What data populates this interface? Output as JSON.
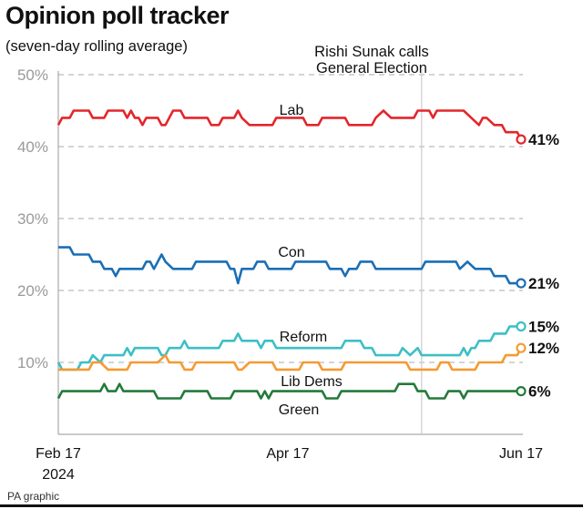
{
  "header": {
    "title": "Opinion poll tracker",
    "subtitle": "(seven-day rolling average)"
  },
  "footer": {
    "credit": "PA graphic"
  },
  "chart_data": {
    "type": "line",
    "title": "Opinion poll tracker",
    "subtitle": "(seven-day rolling average)",
    "xlabel": "",
    "ylabel": "",
    "xlim": [
      "2024-02-17",
      "2024-06-17"
    ],
    "ylim": [
      0,
      50
    ],
    "x_ticks": [
      {
        "date": "2024-02-17",
        "label": "Feb 17",
        "sublabel": "2024"
      },
      {
        "date": "2024-04-17",
        "label": "Apr 17",
        "sublabel": ""
      },
      {
        "date": "2024-06-17",
        "label": "Jun 17",
        "sublabel": ""
      }
    ],
    "y_ticks": [
      {
        "value": 10,
        "label": "10%"
      },
      {
        "value": 20,
        "label": "20%"
      },
      {
        "value": 30,
        "label": "30%"
      },
      {
        "value": 40,
        "label": "40%"
      },
      {
        "value": 50,
        "label": "50%"
      }
    ],
    "grid": "horizontal dashed",
    "annotation": {
      "date": "2024-05-22",
      "text_line1": "Rishi Sunak calls",
      "text_line2": "General Election"
    },
    "series": [
      {
        "name": "Lab",
        "color": "#e3262b",
        "end_label": "41%",
        "points": [
          [
            "2024-02-17",
            43
          ],
          [
            "2024-02-18",
            44
          ],
          [
            "2024-02-20",
            44
          ],
          [
            "2024-02-21",
            45
          ],
          [
            "2024-02-25",
            45
          ],
          [
            "2024-02-26",
            44
          ],
          [
            "2024-02-29",
            44
          ],
          [
            "2024-03-01",
            45
          ],
          [
            "2024-03-05",
            45
          ],
          [
            "2024-03-06",
            44
          ],
          [
            "2024-03-07",
            45
          ],
          [
            "2024-03-08",
            44
          ],
          [
            "2024-03-09",
            44
          ],
          [
            "2024-03-10",
            43
          ],
          [
            "2024-03-11",
            44
          ],
          [
            "2024-03-14",
            44
          ],
          [
            "2024-03-15",
            43
          ],
          [
            "2024-03-16",
            43
          ],
          [
            "2024-03-18",
            45
          ],
          [
            "2024-03-20",
            45
          ],
          [
            "2024-03-21",
            44
          ],
          [
            "2024-03-27",
            44
          ],
          [
            "2024-03-28",
            43
          ],
          [
            "2024-03-30",
            43
          ],
          [
            "2024-03-31",
            44
          ],
          [
            "2024-04-03",
            44
          ],
          [
            "2024-04-04",
            45
          ],
          [
            "2024-04-05",
            44
          ],
          [
            "2024-04-07",
            43
          ],
          [
            "2024-04-13",
            43
          ],
          [
            "2024-04-14",
            44
          ],
          [
            "2024-04-21",
            44
          ],
          [
            "2024-04-22",
            43
          ],
          [
            "2024-04-25",
            43
          ],
          [
            "2024-04-26",
            44
          ],
          [
            "2024-05-02",
            44
          ],
          [
            "2024-05-03",
            43
          ],
          [
            "2024-05-09",
            43
          ],
          [
            "2024-05-10",
            44
          ],
          [
            "2024-05-12",
            45
          ],
          [
            "2024-05-14",
            44
          ],
          [
            "2024-05-20",
            44
          ],
          [
            "2024-05-21",
            45
          ],
          [
            "2024-05-24",
            45
          ],
          [
            "2024-05-25",
            44
          ],
          [
            "2024-05-26",
            45
          ],
          [
            "2024-06-02",
            45
          ],
          [
            "2024-06-04",
            44
          ],
          [
            "2024-06-06",
            43
          ],
          [
            "2024-06-07",
            44
          ],
          [
            "2024-06-08",
            44
          ],
          [
            "2024-06-10",
            43
          ],
          [
            "2024-06-12",
            43
          ],
          [
            "2024-06-13",
            42
          ],
          [
            "2024-06-16",
            42
          ],
          [
            "2024-06-17",
            41
          ]
        ]
      },
      {
        "name": "Con",
        "color": "#1a6fb5",
        "end_label": "21%",
        "points": [
          [
            "2024-02-17",
            26
          ],
          [
            "2024-02-20",
            26
          ],
          [
            "2024-02-21",
            25
          ],
          [
            "2024-02-25",
            25
          ],
          [
            "2024-02-26",
            24
          ],
          [
            "2024-02-28",
            24
          ],
          [
            "2024-02-29",
            23
          ],
          [
            "2024-03-02",
            23
          ],
          [
            "2024-03-03",
            22
          ],
          [
            "2024-03-04",
            23
          ],
          [
            "2024-03-10",
            23
          ],
          [
            "2024-03-11",
            24
          ],
          [
            "2024-03-12",
            24
          ],
          [
            "2024-03-13",
            23
          ],
          [
            "2024-03-15",
            25
          ],
          [
            "2024-03-16",
            24
          ],
          [
            "2024-03-18",
            23
          ],
          [
            "2024-03-23",
            23
          ],
          [
            "2024-03-24",
            24
          ],
          [
            "2024-04-01",
            24
          ],
          [
            "2024-04-02",
            23
          ],
          [
            "2024-04-03",
            23
          ],
          [
            "2024-04-04",
            21
          ],
          [
            "2024-04-05",
            23
          ],
          [
            "2024-04-08",
            23
          ],
          [
            "2024-04-09",
            24
          ],
          [
            "2024-04-11",
            24
          ],
          [
            "2024-04-12",
            23
          ],
          [
            "2024-04-18",
            23
          ],
          [
            "2024-04-19",
            24
          ],
          [
            "2024-04-27",
            24
          ],
          [
            "2024-04-28",
            23
          ],
          [
            "2024-05-01",
            23
          ],
          [
            "2024-05-02",
            22
          ],
          [
            "2024-05-03",
            23
          ],
          [
            "2024-05-05",
            23
          ],
          [
            "2024-05-06",
            24
          ],
          [
            "2024-05-09",
            24
          ],
          [
            "2024-05-10",
            23
          ],
          [
            "2024-05-22",
            23
          ],
          [
            "2024-05-23",
            24
          ],
          [
            "2024-05-31",
            24
          ],
          [
            "2024-06-01",
            23
          ],
          [
            "2024-06-03",
            24
          ],
          [
            "2024-06-05",
            23
          ],
          [
            "2024-06-09",
            23
          ],
          [
            "2024-06-10",
            22
          ],
          [
            "2024-06-13",
            22
          ],
          [
            "2024-06-14",
            21
          ],
          [
            "2024-06-17",
            21
          ]
        ]
      },
      {
        "name": "Reform",
        "color": "#3cbfc6",
        "end_label": "15%",
        "points": [
          [
            "2024-02-17",
            10
          ],
          [
            "2024-02-18",
            9
          ],
          [
            "2024-02-22",
            9
          ],
          [
            "2024-02-23",
            10
          ],
          [
            "2024-02-25",
            10
          ],
          [
            "2024-02-26",
            11
          ],
          [
            "2024-02-28",
            10
          ],
          [
            "2024-02-29",
            11
          ],
          [
            "2024-03-05",
            11
          ],
          [
            "2024-03-06",
            12
          ],
          [
            "2024-03-07",
            11
          ],
          [
            "2024-03-08",
            12
          ],
          [
            "2024-03-14",
            12
          ],
          [
            "2024-03-15",
            11
          ],
          [
            "2024-03-16",
            11
          ],
          [
            "2024-03-17",
            12
          ],
          [
            "2024-03-20",
            12
          ],
          [
            "2024-03-21",
            13
          ],
          [
            "2024-03-22",
            12
          ],
          [
            "2024-03-30",
            12
          ],
          [
            "2024-03-31",
            13
          ],
          [
            "2024-04-03",
            13
          ],
          [
            "2024-04-04",
            14
          ],
          [
            "2024-04-05",
            13
          ],
          [
            "2024-04-09",
            13
          ],
          [
            "2024-04-10",
            12
          ],
          [
            "2024-04-11",
            13
          ],
          [
            "2024-04-13",
            13
          ],
          [
            "2024-04-14",
            12
          ],
          [
            "2024-05-01",
            12
          ],
          [
            "2024-05-02",
            13
          ],
          [
            "2024-05-06",
            13
          ],
          [
            "2024-05-07",
            12
          ],
          [
            "2024-05-09",
            12
          ],
          [
            "2024-05-10",
            11
          ],
          [
            "2024-05-16",
            11
          ],
          [
            "2024-05-17",
            12
          ],
          [
            "2024-05-19",
            11
          ],
          [
            "2024-05-21",
            12
          ],
          [
            "2024-05-22",
            11
          ],
          [
            "2024-06-01",
            11
          ],
          [
            "2024-06-02",
            12
          ],
          [
            "2024-06-03",
            11
          ],
          [
            "2024-06-04",
            12
          ],
          [
            "2024-06-05",
            12
          ],
          [
            "2024-06-06",
            13
          ],
          [
            "2024-06-09",
            13
          ],
          [
            "2024-06-10",
            14
          ],
          [
            "2024-06-13",
            14
          ],
          [
            "2024-06-14",
            15
          ],
          [
            "2024-06-17",
            15
          ]
        ]
      },
      {
        "name": "Lib Dems",
        "color": "#f59a33",
        "end_label": "12%",
        "points": [
          [
            "2024-02-17",
            9
          ],
          [
            "2024-02-25",
            9
          ],
          [
            "2024-02-26",
            10
          ],
          [
            "2024-02-28",
            10
          ],
          [
            "2024-03-01",
            9
          ],
          [
            "2024-03-06",
            9
          ],
          [
            "2024-03-07",
            10
          ],
          [
            "2024-03-14",
            10
          ],
          [
            "2024-03-16",
            11
          ],
          [
            "2024-03-17",
            10
          ],
          [
            "2024-03-20",
            10
          ],
          [
            "2024-03-21",
            9
          ],
          [
            "2024-03-23",
            9
          ],
          [
            "2024-03-24",
            10
          ],
          [
            "2024-04-03",
            10
          ],
          [
            "2024-04-04",
            9
          ],
          [
            "2024-04-05",
            9
          ],
          [
            "2024-04-07",
            10
          ],
          [
            "2024-04-13",
            10
          ],
          [
            "2024-04-14",
            9
          ],
          [
            "2024-04-20",
            9
          ],
          [
            "2024-04-21",
            10
          ],
          [
            "2024-04-25",
            10
          ],
          [
            "2024-04-26",
            9
          ],
          [
            "2024-05-01",
            9
          ],
          [
            "2024-05-02",
            10
          ],
          [
            "2024-05-18",
            10
          ],
          [
            "2024-05-19",
            9
          ],
          [
            "2024-05-26",
            9
          ],
          [
            "2024-05-27",
            10
          ],
          [
            "2024-05-29",
            10
          ],
          [
            "2024-05-30",
            9
          ],
          [
            "2024-06-05",
            9
          ],
          [
            "2024-06-06",
            10
          ],
          [
            "2024-06-12",
            10
          ],
          [
            "2024-06-13",
            11
          ],
          [
            "2024-06-16",
            11
          ],
          [
            "2024-06-17",
            12
          ]
        ]
      },
      {
        "name": "Green",
        "color": "#237a3a",
        "end_label": "6%",
        "points": [
          [
            "2024-02-17",
            5
          ],
          [
            "2024-02-18",
            6
          ],
          [
            "2024-02-28",
            6
          ],
          [
            "2024-02-29",
            7
          ],
          [
            "2024-03-01",
            6
          ],
          [
            "2024-03-03",
            6
          ],
          [
            "2024-03-04",
            7
          ],
          [
            "2024-03-05",
            6
          ],
          [
            "2024-03-13",
            6
          ],
          [
            "2024-03-14",
            5
          ],
          [
            "2024-03-20",
            5
          ],
          [
            "2024-03-21",
            6
          ],
          [
            "2024-03-27",
            6
          ],
          [
            "2024-03-28",
            5
          ],
          [
            "2024-04-02",
            5
          ],
          [
            "2024-04-03",
            6
          ],
          [
            "2024-04-09",
            6
          ],
          [
            "2024-04-10",
            5
          ],
          [
            "2024-04-11",
            6
          ],
          [
            "2024-04-12",
            5
          ],
          [
            "2024-04-13",
            6
          ],
          [
            "2024-04-26",
            6
          ],
          [
            "2024-04-27",
            5
          ],
          [
            "2024-04-30",
            5
          ],
          [
            "2024-05-01",
            6
          ],
          [
            "2024-05-15",
            6
          ],
          [
            "2024-05-16",
            7
          ],
          [
            "2024-05-20",
            7
          ],
          [
            "2024-05-21",
            6
          ],
          [
            "2024-05-23",
            6
          ],
          [
            "2024-05-24",
            5
          ],
          [
            "2024-05-28",
            5
          ],
          [
            "2024-05-29",
            6
          ],
          [
            "2024-06-01",
            6
          ],
          [
            "2024-06-02",
            5
          ],
          [
            "2024-06-03",
            6
          ],
          [
            "2024-06-17",
            6
          ]
        ]
      }
    ]
  }
}
